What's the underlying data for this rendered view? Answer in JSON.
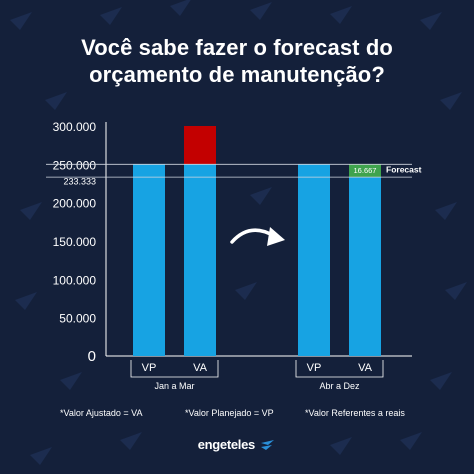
{
  "title_line1": "Você sabe fazer o forecast  do",
  "title_line2": "orçamento de manutenção?",
  "colors": {
    "background": "#14203a",
    "bar_blue": "#17a3e3",
    "bar_red": "#c30000",
    "forecast_green": "#3fa34d",
    "text": "#ffffff"
  },
  "chart_data": {
    "type": "bar",
    "ylim": [
      0,
      300000
    ],
    "yticks": [
      "300.000",
      "250.000",
      "200.000",
      "150.000",
      "100.000",
      "50.000",
      "0"
    ],
    "ytick_values": [
      300000,
      250000,
      200000,
      150000,
      100000,
      50000,
      0
    ],
    "reference_lines": [
      {
        "label": "233.333",
        "value": 233333
      },
      {
        "value": 250000
      }
    ],
    "groups": [
      {
        "label": "Jan a Mar",
        "bars": [
          {
            "label": "VP",
            "value": 250000,
            "stack": []
          },
          {
            "label": "VA",
            "value": 250000,
            "stack": [
              {
                "value": 50000,
                "color": "#c30000"
              }
            ]
          }
        ]
      },
      {
        "label": "Abr a Dez",
        "bars": [
          {
            "label": "VP",
            "value": 250000,
            "stack": []
          },
          {
            "label": "VA",
            "value": 233333,
            "stack": [
              {
                "value": 16667,
                "label": "16.667",
                "color": "#3fa34d"
              }
            ]
          }
        ]
      }
    ],
    "annotation": "Forecast"
  },
  "footnotes": [
    "*Valor Ajustado = VA",
    "*Valor Planejado = VP",
    "*Valor Referentes a reais"
  ],
  "brand": "engeteles",
  "icons": {
    "arrow": "curved-right-arrow-icon",
    "logo": "engeteles-logo-icon"
  }
}
